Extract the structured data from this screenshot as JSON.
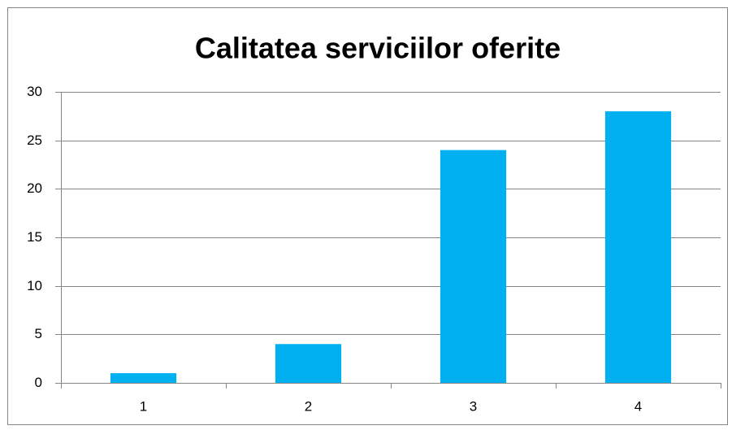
{
  "chart_data": {
    "type": "bar",
    "title": "Calitatea serviciilor oferite",
    "categories": [
      "1",
      "2",
      "3",
      "4"
    ],
    "values": [
      1,
      4,
      24,
      28
    ],
    "color": "#00b0f0",
    "ylim": [
      0,
      30
    ],
    "yticks": [
      0,
      5,
      10,
      15,
      20,
      25,
      30
    ],
    "grid": true
  }
}
